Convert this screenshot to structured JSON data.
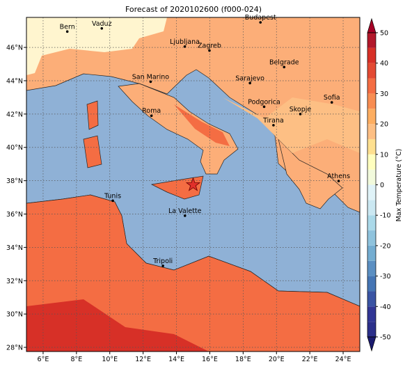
{
  "title": "Forecast of 2020102600 (f000-024)",
  "map": {
    "lonlim": [
      5,
      25
    ],
    "latlim": [
      27.75,
      47.8
    ],
    "lon_ticks": [
      {
        "value": 6,
        "label": "6°E"
      },
      {
        "value": 8,
        "label": "8°E"
      },
      {
        "value": 10,
        "label": "10°E"
      },
      {
        "value": 12,
        "label": "12°E"
      },
      {
        "value": 14,
        "label": "14°E"
      },
      {
        "value": 16,
        "label": "16°E"
      },
      {
        "value": 18,
        "label": "18°E"
      },
      {
        "value": 20,
        "label": "20°E"
      },
      {
        "value": 22,
        "label": "22°E"
      },
      {
        "value": 24,
        "label": "24°E"
      }
    ],
    "lat_ticks": [
      {
        "value": 28,
        "label": "28°N"
      },
      {
        "value": 30,
        "label": "30°N"
      },
      {
        "value": 32,
        "label": "32°N"
      },
      {
        "value": 34,
        "label": "34°N"
      },
      {
        "value": 36,
        "label": "36°N"
      },
      {
        "value": 38,
        "label": "38°N"
      },
      {
        "value": 40,
        "label": "40°N"
      },
      {
        "value": 42,
        "label": "42°N"
      },
      {
        "value": 44,
        "label": "44°N"
      },
      {
        "value": 46,
        "label": "46°N"
      }
    ],
    "cities": [
      {
        "name": "Bern",
        "lon": 7.45,
        "lat": 46.95
      },
      {
        "name": "Vaduz",
        "lon": 9.52,
        "lat": 47.14
      },
      {
        "name": "Budapest",
        "lon": 19.04,
        "lat": 47.5
      },
      {
        "name": "Ljubljana",
        "lon": 14.5,
        "lat": 46.05
      },
      {
        "name": "Zagreb",
        "lon": 15.98,
        "lat": 45.81
      },
      {
        "name": "Belgrade",
        "lon": 20.46,
        "lat": 44.82
      },
      {
        "name": "Sarajevo",
        "lon": 18.41,
        "lat": 43.86
      },
      {
        "name": "San Marino",
        "lon": 12.45,
        "lat": 43.94
      },
      {
        "name": "Sofia",
        "lon": 23.32,
        "lat": 42.7
      },
      {
        "name": "Podgorica",
        "lon": 19.26,
        "lat": 42.44
      },
      {
        "name": "Skopje",
        "lon": 21.43,
        "lat": 42.0
      },
      {
        "name": "Roma",
        "lon": 12.5,
        "lat": 41.9
      },
      {
        "name": "Tirana",
        "lon": 19.82,
        "lat": 41.33
      },
      {
        "name": "Athens",
        "lon": 23.73,
        "lat": 37.98
      },
      {
        "name": "Tunis",
        "lon": 10.18,
        "lat": 36.8
      },
      {
        "name": "La Valette",
        "lon": 14.51,
        "lat": 35.9
      },
      {
        "name": "Tripoli",
        "lon": 13.19,
        "lat": 32.89
      }
    ],
    "star": {
      "lon": 15.0,
      "lat": 37.75,
      "color": "#e0302a"
    }
  },
  "colorbar": {
    "label": "Max Temperature (°C)",
    "lim": [
      -50,
      50
    ],
    "ticks": [
      -50,
      -40,
      -30,
      -20,
      -10,
      0,
      10,
      20,
      30,
      40,
      50
    ],
    "colors": [
      "#2b2f8a",
      "#313695",
      "#3a54a4",
      "#4575b4",
      "#5b8fc2",
      "#74add1",
      "#8fc3dd",
      "#abd9e9",
      "#cbe8f2",
      "#e0f3f8",
      "#f2fadc",
      "#ffffbf",
      "#fee090",
      "#fdbf84",
      "#fdae61",
      "#f88d52",
      "#f46d43",
      "#e34a33",
      "#d73027",
      "#b2182b"
    ],
    "under": "#1a1a6e",
    "over": "#a50026"
  }
}
